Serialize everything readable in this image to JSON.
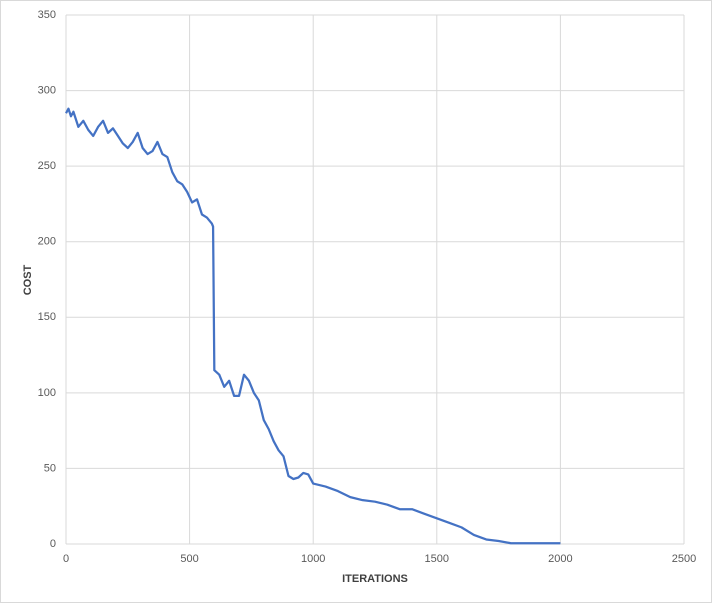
{
  "chart_data": {
    "type": "line",
    "xlabel": "ITERATIONS",
    "ylabel": "COST",
    "x": [
      0,
      10,
      20,
      30,
      50,
      70,
      90,
      110,
      130,
      150,
      170,
      190,
      210,
      230,
      250,
      270,
      290,
      310,
      330,
      350,
      370,
      390,
      410,
      430,
      450,
      470,
      490,
      510,
      530,
      550,
      570,
      590,
      595,
      600,
      620,
      640,
      660,
      680,
      700,
      720,
      740,
      760,
      780,
      800,
      820,
      840,
      860,
      880,
      900,
      920,
      940,
      960,
      980,
      1000,
      1050,
      1100,
      1150,
      1200,
      1250,
      1300,
      1350,
      1400,
      1450,
      1500,
      1550,
      1600,
      1650,
      1700,
      1750,
      1800,
      1900,
      2000
    ],
    "series": [
      {
        "color": "#4472c4",
        "values": [
          285,
          288,
          283,
          286,
          276,
          280,
          274,
          270,
          276,
          280,
          272,
          275,
          270,
          265,
          262,
          266,
          272,
          262,
          258,
          260,
          266,
          258,
          256,
          246,
          240,
          238,
          233,
          226,
          228,
          218,
          216,
          212,
          210,
          115,
          112,
          104,
          108,
          98,
          98,
          112,
          108,
          100,
          95,
          82,
          76,
          68,
          62,
          58,
          45,
          43,
          44,
          47,
          46,
          40,
          38,
          35,
          31,
          29,
          28,
          26,
          23,
          23,
          20,
          17,
          14,
          11,
          6,
          3,
          2,
          0.5,
          0.5,
          0.5
        ]
      }
    ],
    "xlim": [
      0,
      2500
    ],
    "xticks": [
      0,
      500,
      1000,
      1500,
      2000,
      2500
    ],
    "ylim": [
      0,
      350
    ],
    "yticks": [
      0,
      50,
      100,
      150,
      200,
      250,
      300,
      350
    ],
    "grid": true
  }
}
